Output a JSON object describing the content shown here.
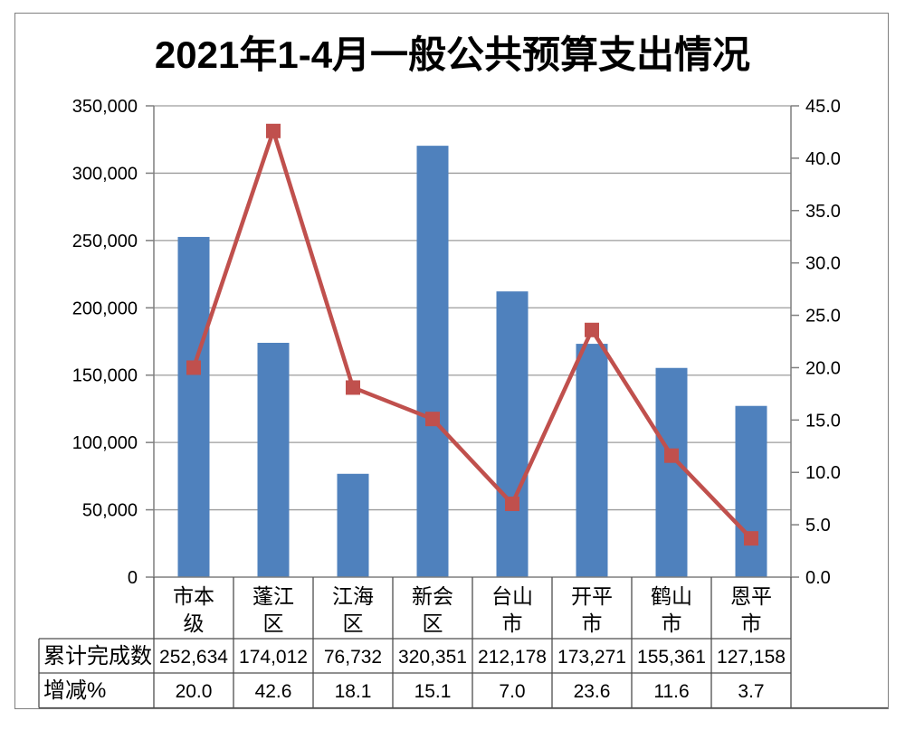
{
  "title": "2021年1-4月一般公共预算支出情况",
  "chart_data": {
    "type": "combo",
    "subtypes": [
      "bar",
      "line"
    ],
    "title": "2021年1-4月一般公共预算支出情况",
    "categories": [
      "市本级",
      "蓬江区",
      "江海区",
      "新会区",
      "台山市",
      "开平市",
      "鹤山市",
      "恩平市"
    ],
    "categories_display": [
      "市本\n级",
      "蓬江\n区",
      "江海\n区",
      "新会\n区",
      "台山\n市",
      "开平\n市",
      "鹤山\n市",
      "恩平\n市"
    ],
    "series": [
      {
        "name": "累计完成数",
        "type": "bar",
        "axis": "left",
        "color": "#4F81BD",
        "values": [
          252634,
          174012,
          76732,
          320351,
          212178,
          173271,
          155361,
          127158
        ],
        "display": [
          "252,634",
          "174,012",
          "76,732",
          "320,351",
          "212,178",
          "173,271",
          "155,361",
          "127,158"
        ]
      },
      {
        "name": "增减%",
        "type": "line",
        "axis": "right",
        "color": "#C0504D",
        "marker": "square",
        "values": [
          20.0,
          42.6,
          18.1,
          15.1,
          7.0,
          23.6,
          11.6,
          3.7
        ],
        "display": [
          "20.0",
          "42.6",
          "18.1",
          "15.1",
          "7.0",
          "23.6",
          "11.6",
          "3.7"
        ]
      }
    ],
    "left_axis": {
      "min": 0,
      "max": 350000,
      "step": 50000,
      "tick_labels": [
        "350,000",
        "300,000",
        "250,000",
        "200,000",
        "150,000",
        "100,000",
        "50,000",
        "0"
      ]
    },
    "right_axis": {
      "min": 0.0,
      "max": 45.0,
      "step": 5.0,
      "tick_labels": [
        "45.0",
        "40.0",
        "35.0",
        "30.0",
        "25.0",
        "20.0",
        "15.0",
        "10.0",
        "5.0",
        "0.0"
      ]
    },
    "gridlines": "horizontal-major",
    "legend": "none",
    "data_table_shown": true
  },
  "table": {
    "row_labels": [
      "累计完成数",
      "增减%"
    ]
  },
  "colors": {
    "bar": "#4F81BD",
    "line": "#C0504D",
    "gridline": "#9C9C9C",
    "axis": "#7F7F7F",
    "table_border": "#4D4D4D",
    "frame_border": "#7F7F7F",
    "text": "#000000",
    "background": "#FFFFFF"
  }
}
